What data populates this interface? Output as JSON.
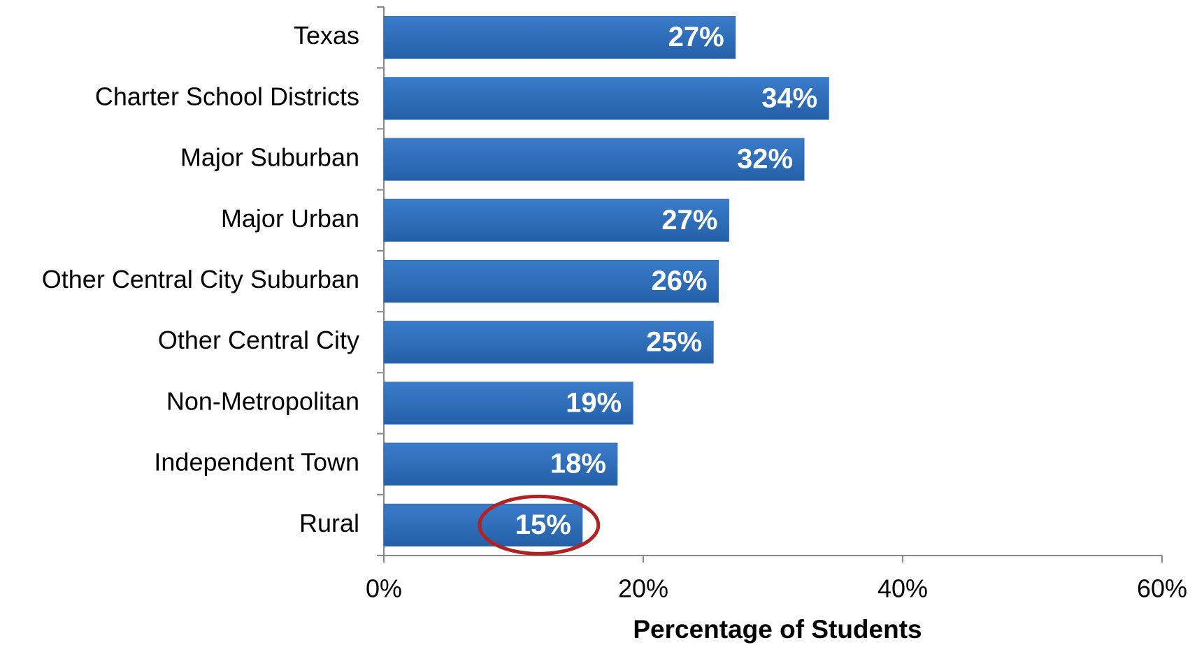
{
  "chart_data": {
    "type": "barh",
    "categories": [
      "Texas",
      "Charter School Districts",
      "Major Suburban",
      "Major Urban",
      "Other Central City Suburban",
      "Other Central City",
      "Non-Metropolitan",
      "Independent Town",
      "Rural"
    ],
    "values": [
      27.1,
      34.3,
      32.4,
      26.6,
      25.8,
      25.4,
      19.2,
      18.0,
      15.3
    ],
    "value_labels": [
      "27%",
      "34%",
      "32%",
      "27%",
      "26%",
      "25%",
      "19%",
      "18%",
      "15%"
    ],
    "color": "#2f6fba",
    "xlim": [
      0,
      60
    ],
    "xticks": [
      {
        "value": 0,
        "label": "0%"
      },
      {
        "value": 20,
        "label": "20%"
      },
      {
        "value": 40,
        "label": "40%"
      },
      {
        "value": 60,
        "label": "60%"
      }
    ],
    "xlabel": "Percentage of Students"
  }
}
